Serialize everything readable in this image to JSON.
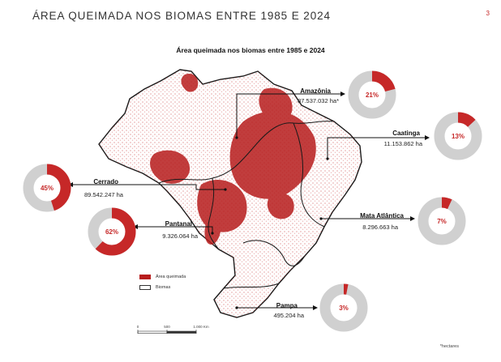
{
  "page": {
    "title": "ÁREA QUEIMADA NOS BIOMAS ENTRE 1985 E 2024",
    "number": "3"
  },
  "map": {
    "title": "Área queimada nos biomas entre 1985 e 2024"
  },
  "biomes": [
    {
      "id": "amazonia",
      "name": "Amazônia",
      "area": "87.537.032 ha*",
      "percent": 21,
      "percent_label": "21%"
    },
    {
      "id": "caatinga",
      "name": "Caatinga",
      "area": "11.153.862 ha",
      "percent": 13,
      "percent_label": "13%"
    },
    {
      "id": "cerrado",
      "name": "Cerrado",
      "area": "89.542.247 ha",
      "percent": 45,
      "percent_label": "45%"
    },
    {
      "id": "mata-atlantica",
      "name": "Mata Atlântica",
      "area": "8.296.663 ha",
      "percent": 7,
      "percent_label": "7%"
    },
    {
      "id": "pantanal",
      "name": "Pantanal",
      "area": "9.326.064 ha",
      "percent": 62,
      "percent_label": "62%"
    },
    {
      "id": "pampa",
      "name": "Pampa",
      "area": "495.204 ha",
      "percent": 3,
      "percent_label": "3%"
    }
  ],
  "legend": {
    "burned": "Área queimada",
    "biomes": "Biomas"
  },
  "scale": {
    "ticks": [
      "0",
      "500",
      "1.000 Km"
    ]
  },
  "footnote": "*hectares",
  "colors": {
    "burned": "#c62828",
    "track": "#d0d0d0",
    "map_burn": "#b71c1c"
  }
}
